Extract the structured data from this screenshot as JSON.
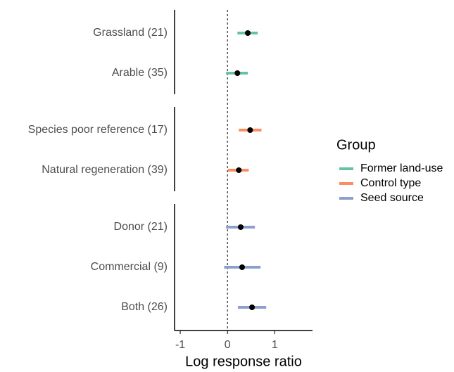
{
  "chart_data": {
    "type": "forest",
    "xlabel": "Log response ratio",
    "legend_title": "Group",
    "xlim": [
      -1.12,
      1.8
    ],
    "xticks": [
      -1,
      0,
      1
    ],
    "reference_line": 0,
    "series": [
      {
        "name": "Former land-use",
        "color": "#66c2a5",
        "categories": [
          "Grassland (21)",
          "Arable (35)"
        ],
        "values": [
          0.43,
          0.21
        ],
        "lower": [
          0.21,
          -0.03
        ],
        "upper": [
          0.64,
          0.43
        ]
      },
      {
        "name": "Control type",
        "color": "#fc8d62",
        "categories": [
          "Species poor reference (17)",
          "Natural regeneration (39)"
        ],
        "values": [
          0.48,
          0.24
        ],
        "lower": [
          0.24,
          0.01
        ],
        "upper": [
          0.72,
          0.45
        ]
      },
      {
        "name": "Seed source",
        "color": "#8da0cb",
        "categories": [
          "Donor (21)",
          "Commercial (9)",
          "Both (26)"
        ],
        "values": [
          0.28,
          0.31,
          0.52
        ],
        "lower": [
          -0.03,
          -0.07,
          0.22
        ],
        "upper": [
          0.58,
          0.7,
          0.82
        ]
      }
    ]
  }
}
